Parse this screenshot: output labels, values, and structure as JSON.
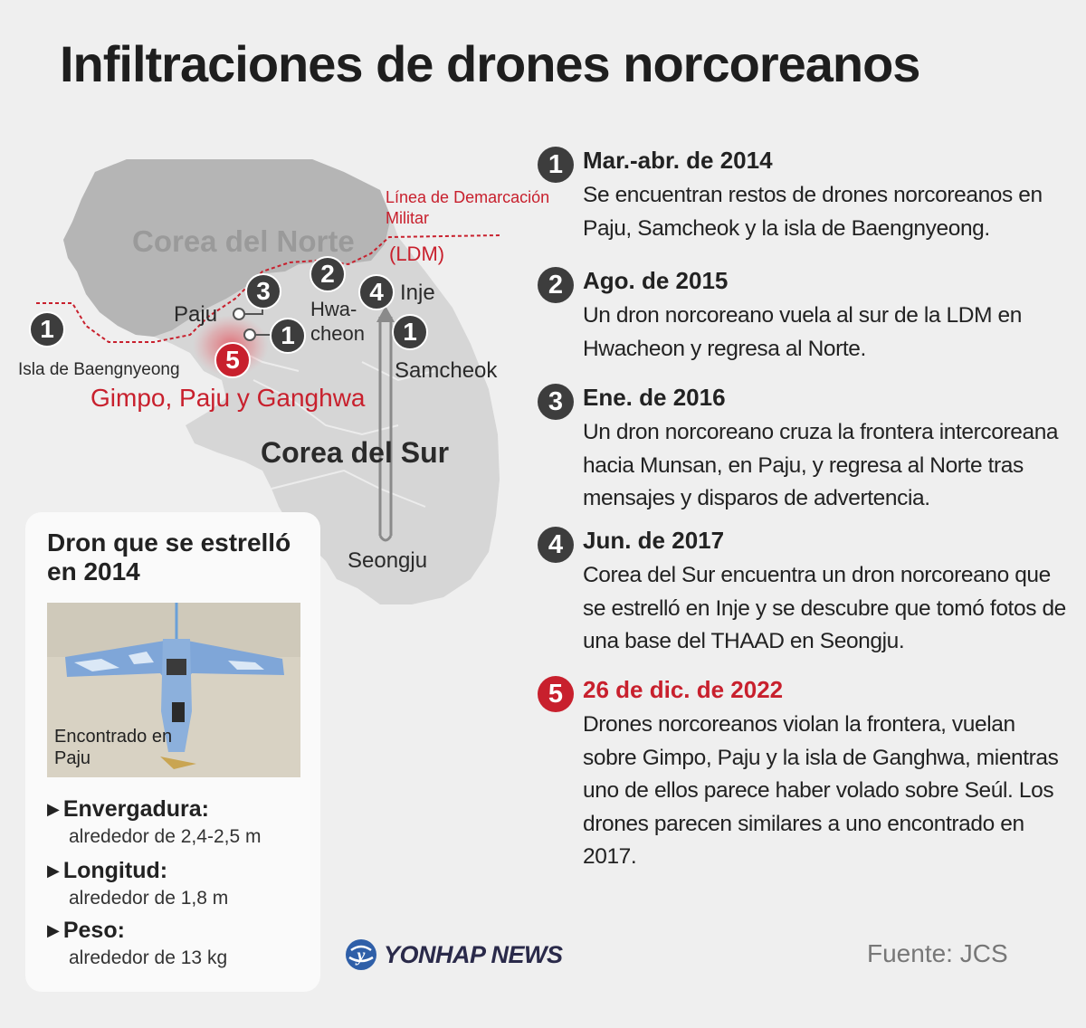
{
  "title": "Infiltraciones de drones norcoreanos",
  "map": {
    "north_label": "Corea del Norte",
    "south_label": "Corea del Sur",
    "mdl_label": "Línea de Demarcación Militar",
    "mdl_abbr": "(LDM)",
    "places": {
      "paju": "Paju",
      "hwacheon": "Hwa-\ncheon",
      "inje": "Inje",
      "samcheok": "Samcheok",
      "baengnyeong": "Isla de Baengnyeong",
      "gimpo": "Gimpo, Paju y Ganghwa",
      "seongju": "Seongju"
    },
    "markers": {
      "baengnyeong": "1",
      "paju_1": "1",
      "paju_3": "3",
      "hwacheon": "2",
      "inje": "4",
      "samcheok": "1",
      "gimpo": "5"
    },
    "colors": {
      "land": "#d6d6d6",
      "north": "#b5b5b5",
      "route": "#c8202d"
    }
  },
  "drone_card": {
    "title": "Dron que se estrelló en 2014",
    "photo_caption": "Encontrado en\nPaju",
    "specs": [
      {
        "label": "Envergadura:",
        "value": "alrededor de 2,4-2,5 m"
      },
      {
        "label": "Longitud:",
        "value": "alrededor de 1,8 m"
      },
      {
        "label": "Peso:",
        "value": "alrededor de 13 kg"
      }
    ]
  },
  "events": [
    {
      "num": "1",
      "date": "Mar.-abr. de 2014",
      "text": " Se encuentran restos de drones norcoreanos en Paju, Samcheok y la isla de Baengnyeong."
    },
    {
      "num": "2",
      "date": "Ago. de 2015",
      "text": "Un dron norcoreano vuela al sur de la LDM en Hwacheon y regresa al Norte."
    },
    {
      "num": "3",
      "date": "Ene. de 2016",
      "text": "Un dron norcoreano cruza la frontera intercoreana hacia Munsan, en Paju, y regresa al Norte tras mensajes y disparos de advertencia."
    },
    {
      "num": "4",
      "date": "Jun. de 2017",
      "text": "Corea del Sur encuentra un dron norcoreano que se estrelló en Inje y se descubre que tomó fotos de una base del THAAD en Seongju."
    },
    {
      "num": "5",
      "date": "26 de dic. de 2022",
      "text": "Drones norcoreanos violan la frontera, vuelan sobre Gimpo, Paju y la isla de Ganghwa, mientras uno de ellos parece haber volado sobre Seúl. Los drones parecen similares a uno encontrado en 2017."
    }
  ],
  "logo": "YONHAP NEWS",
  "source": "Fuente: JCS",
  "accent_color": "#c8202d"
}
